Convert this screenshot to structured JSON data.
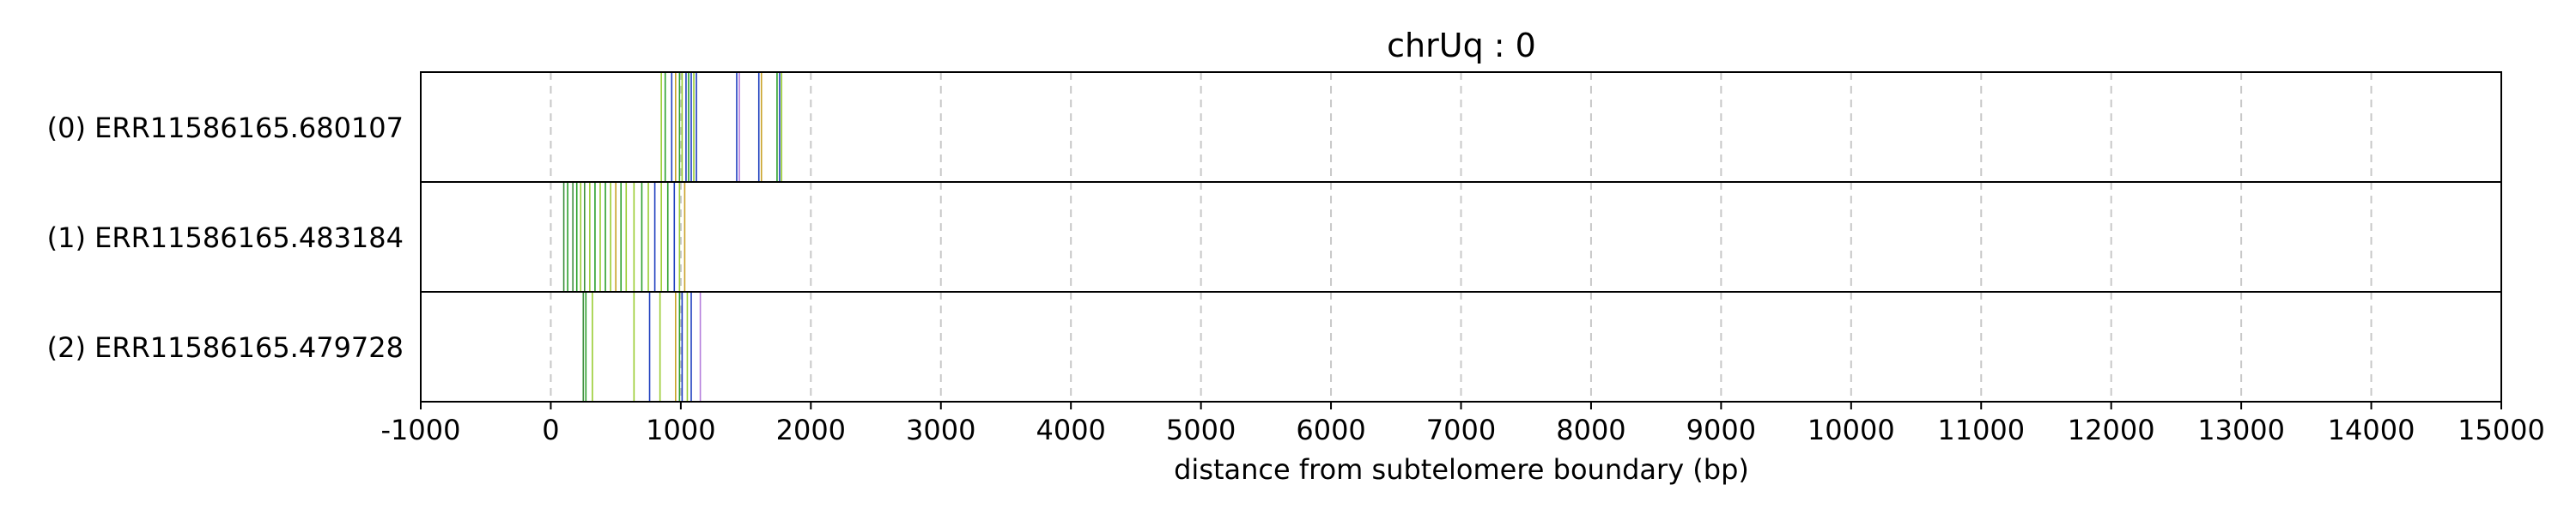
{
  "chart_data": {
    "type": "event-track",
    "title": "chrUq : 0",
    "xlabel": "distance from subtelomere boundary (bp)",
    "ylabel": "",
    "xlim": [
      -1000,
      15000
    ],
    "xticks": [
      -1000,
      0,
      1000,
      2000,
      3000,
      4000,
      5000,
      6000,
      7000,
      8000,
      9000,
      10000,
      11000,
      12000,
      13000,
      14000,
      15000
    ],
    "xtick_labels": [
      "-1000",
      "0",
      "1000",
      "2000",
      "3000",
      "4000",
      "5000",
      "6000",
      "7000",
      "8000",
      "9000",
      "10000",
      "11000",
      "12000",
      "13000",
      "14000",
      "15000"
    ],
    "grid": {
      "x": true,
      "y": false,
      "style": "dashed",
      "color": "#c8c8c8"
    },
    "colors": {
      "A": "#2ca02c",
      "C": "#1f3fbf",
      "G": "#9acd32",
      "T": "#c9a227",
      "M": "#b57edc",
      "N": "#3c8f3c"
    },
    "tracks": [
      {
        "label": "(0) ERR11586165.680107",
        "events": [
          {
            "x": 850,
            "c": "G"
          },
          {
            "x": 880,
            "c": "A"
          },
          {
            "x": 930,
            "c": "C"
          },
          {
            "x": 960,
            "c": "T"
          },
          {
            "x": 990,
            "c": "A"
          },
          {
            "x": 1010,
            "c": "G"
          },
          {
            "x": 1040,
            "c": "C"
          },
          {
            "x": 1060,
            "c": "A"
          },
          {
            "x": 1080,
            "c": "C"
          },
          {
            "x": 1100,
            "c": "G"
          },
          {
            "x": 1120,
            "c": "C"
          },
          {
            "x": 1430,
            "c": "C"
          },
          {
            "x": 1450,
            "c": "M"
          },
          {
            "x": 1600,
            "c": "C"
          },
          {
            "x": 1620,
            "c": "T"
          },
          {
            "x": 1740,
            "c": "A"
          },
          {
            "x": 1760,
            "c": "C"
          },
          {
            "x": 1775,
            "c": "G"
          }
        ]
      },
      {
        "label": "(1) ERR11586165.483184",
        "events": [
          {
            "x": 100,
            "c": "N"
          },
          {
            "x": 130,
            "c": "A"
          },
          {
            "x": 170,
            "c": "N"
          },
          {
            "x": 200,
            "c": "A"
          },
          {
            "x": 230,
            "c": "G"
          },
          {
            "x": 260,
            "c": "N"
          },
          {
            "x": 300,
            "c": "G"
          },
          {
            "x": 340,
            "c": "A"
          },
          {
            "x": 380,
            "c": "G"
          },
          {
            "x": 420,
            "c": "A"
          },
          {
            "x": 460,
            "c": "G"
          },
          {
            "x": 500,
            "c": "T"
          },
          {
            "x": 540,
            "c": "A"
          },
          {
            "x": 580,
            "c": "G"
          },
          {
            "x": 640,
            "c": "G"
          },
          {
            "x": 700,
            "c": "A"
          },
          {
            "x": 750,
            "c": "G"
          },
          {
            "x": 800,
            "c": "C"
          },
          {
            "x": 850,
            "c": "G"
          },
          {
            "x": 900,
            "c": "A"
          },
          {
            "x": 950,
            "c": "C"
          },
          {
            "x": 990,
            "c": "G"
          },
          {
            "x": 1030,
            "c": "T"
          }
        ]
      },
      {
        "label": "(2) ERR11586165.479728",
        "events": [
          {
            "x": 250,
            "c": "N"
          },
          {
            "x": 270,
            "c": "A"
          },
          {
            "x": 320,
            "c": "G"
          },
          {
            "x": 640,
            "c": "G"
          },
          {
            "x": 760,
            "c": "C"
          },
          {
            "x": 840,
            "c": "G"
          },
          {
            "x": 960,
            "c": "T"
          },
          {
            "x": 990,
            "c": "A"
          },
          {
            "x": 1010,
            "c": "C"
          },
          {
            "x": 1050,
            "c": "G"
          },
          {
            "x": 1080,
            "c": "C"
          },
          {
            "x": 1150,
            "c": "M"
          }
        ]
      }
    ]
  }
}
